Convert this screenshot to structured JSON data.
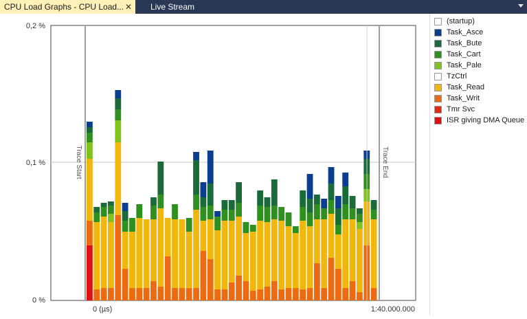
{
  "tabs": [
    {
      "label": "CPU Load Graphs - CPU Load...",
      "active": true,
      "close_icon": "close-icon"
    },
    {
      "label": "Live Stream",
      "active": false
    }
  ],
  "tab_menu_icon": "chevron-down-icon",
  "chart_data": {
    "type": "bar",
    "stacked": true,
    "y_ticks": [
      "0,2 %",
      "0,1 %",
      "0 %"
    ],
    "ylim": [
      0,
      0.2
    ],
    "x_start_label": "0 (µs)",
    "x_end_label": "1:40.000.000",
    "markers": [
      "Trace Start",
      "Trace End"
    ],
    "grid": true,
    "legend_position": "right",
    "series": [
      {
        "name": "(startup)",
        "color": "#ffffff"
      },
      {
        "name": "Task_Asce",
        "color": "#0b3d91"
      },
      {
        "name": "Task_Bute",
        "color": "#1b6b3a"
      },
      {
        "name": "Task_Cart",
        "color": "#2f8f1f"
      },
      {
        "name": "Task_Pale",
        "color": "#7fc31c"
      },
      {
        "name": "TzCtrl",
        "color": "#ffffff"
      },
      {
        "name": "Task_Read",
        "color": "#f2b70c"
      },
      {
        "name": "Task_Writ",
        "color": "#ec6b11"
      },
      {
        "name": "Tmr Svc",
        "color": "#e82a0c"
      },
      {
        "name": "ISR giving DMA Queue",
        "color": "#e01010"
      }
    ],
    "bars": [
      {
        "isr": 0.04,
        "writ": 0.018,
        "read": 0.045,
        "pale": 0.012,
        "cart": 0.007,
        "bute": 0.004,
        "asce": 0.004
      },
      {
        "writ": 0.008,
        "read": 0.049,
        "cart": 0.007,
        "bute": 0.004
      },
      {
        "writ": 0.009,
        "read": 0.052,
        "cart": 0.007,
        "bute": 0.003
      },
      {
        "writ": 0.009,
        "read": 0.048,
        "pale": 0.006,
        "cart": 0.006,
        "bute": 0.003
      },
      {
        "writ": 0.062,
        "read": 0.053,
        "pale": 0.016,
        "cart": 0.008,
        "bute": 0.008,
        "asce": 0.006
      },
      {
        "writ": 0.023,
        "read": 0.027,
        "cart": 0.008,
        "bute": 0.007,
        "asce": 0.006
      },
      {
        "writ": 0.009,
        "read": 0.041,
        "cart": 0.01
      },
      {
        "writ": 0.009,
        "read": 0.051,
        "cart": 0.01
      },
      {
        "writ": 0.009,
        "read": 0.05
      },
      {
        "writ": 0.014,
        "read": 0.045,
        "cart": 0.01,
        "bute": 0.006
      },
      {
        "writ": 0.01,
        "read": 0.057,
        "cart": 0.01,
        "bute": 0.007,
        "bute2": 0.017
      },
      {
        "writ": 0.032,
        "read": 0.028
      },
      {
        "writ": 0.009,
        "read": 0.05,
        "cart": 0.011
      },
      {
        "writ": 0.009,
        "read": 0.05
      },
      {
        "writ": 0.009,
        "read": 0.041,
        "cart": 0.01
      },
      {
        "writ": 0.009,
        "read": 0.057,
        "cart": 0.011,
        "bute": 0.007,
        "bute2": 0.018,
        "asce": 0.006
      },
      {
        "writ": 0.036,
        "read": 0.022,
        "cart": 0.01,
        "bute": 0.007,
        "asce": 0.011
      },
      {
        "writ": 0.03,
        "read": 0.029,
        "cart": 0.01,
        "bute": 0.006,
        "bute2": 0.01,
        "asce": 0.024
      },
      {
        "writ": 0.008,
        "read": 0.043,
        "cart": 0.01,
        "asce": 0.004
      },
      {
        "writ": 0.008,
        "read": 0.05,
        "cart": 0.008,
        "bute": 0.007
      },
      {
        "writ": 0.013,
        "read": 0.045,
        "cart": 0.008,
        "bute": 0.007
      },
      {
        "writ": 0.018,
        "read": 0.043,
        "cart": 0.01,
        "bute": 0.015
      },
      {
        "writ": 0.014,
        "read": 0.035,
        "cart": 0.008
      },
      {
        "writ": 0.007,
        "read": 0.043,
        "cart": 0.005
      },
      {
        "writ": 0.008,
        "read": 0.05,
        "cart": 0.011,
        "bute": 0.011
      },
      {
        "writ": 0.01,
        "read": 0.047,
        "cart": 0.011,
        "bute": 0.007
      },
      {
        "writ": 0.014,
        "read": 0.045,
        "cart": 0.01,
        "bute": 0.008,
        "bute2": 0.011
      },
      {
        "writ": 0.008,
        "read": 0.05,
        "cart": 0.01
      },
      {
        "writ": 0.009,
        "read": 0.045,
        "cart": 0.01
      },
      {
        "writ": 0.009,
        "read": 0.04,
        "cart": 0.005
      },
      {
        "writ": 0.008,
        "read": 0.05,
        "cart": 0.01,
        "bute": 0.012
      },
      {
        "writ": 0.009,
        "read": 0.045,
        "cart": 0.01,
        "bute": 0.01,
        "asce": 0.018
      },
      {
        "writ": 0.027,
        "read": 0.032,
        "cart": 0.011,
        "bute": 0.007
      },
      {
        "writ": 0.009,
        "read": 0.05,
        "cart": 0.008,
        "asce": 0.007
      },
      {
        "writ": 0.031,
        "read": 0.032,
        "cart": 0.01,
        "bute": 0.012,
        "asce": 0.012
      },
      {
        "writ": 0.023,
        "read": 0.025,
        "cart": 0.007,
        "bute": 0.012,
        "asce": 0.009
      },
      {
        "writ": 0.009,
        "read": 0.05,
        "cart": 0.011,
        "bute": 0.007,
        "bute2": 0.006,
        "asce": 0.01
      },
      {
        "writ": 0.014,
        "read": 0.045,
        "cart": 0.008,
        "bute": 0.009
      },
      {
        "writ": 0.006,
        "read": 0.046,
        "cart": 0.006,
        "pale": 0.005,
        "bute": 0.004
      },
      {
        "writ": 0.04,
        "read": 0.032,
        "pale": 0.009,
        "cart": 0.011,
        "bute": 0.011,
        "asce": 0.006
      },
      {
        "writ": 0.009,
        "read": 0.05,
        "cart": 0.007,
        "bute": 0.007
      }
    ]
  }
}
